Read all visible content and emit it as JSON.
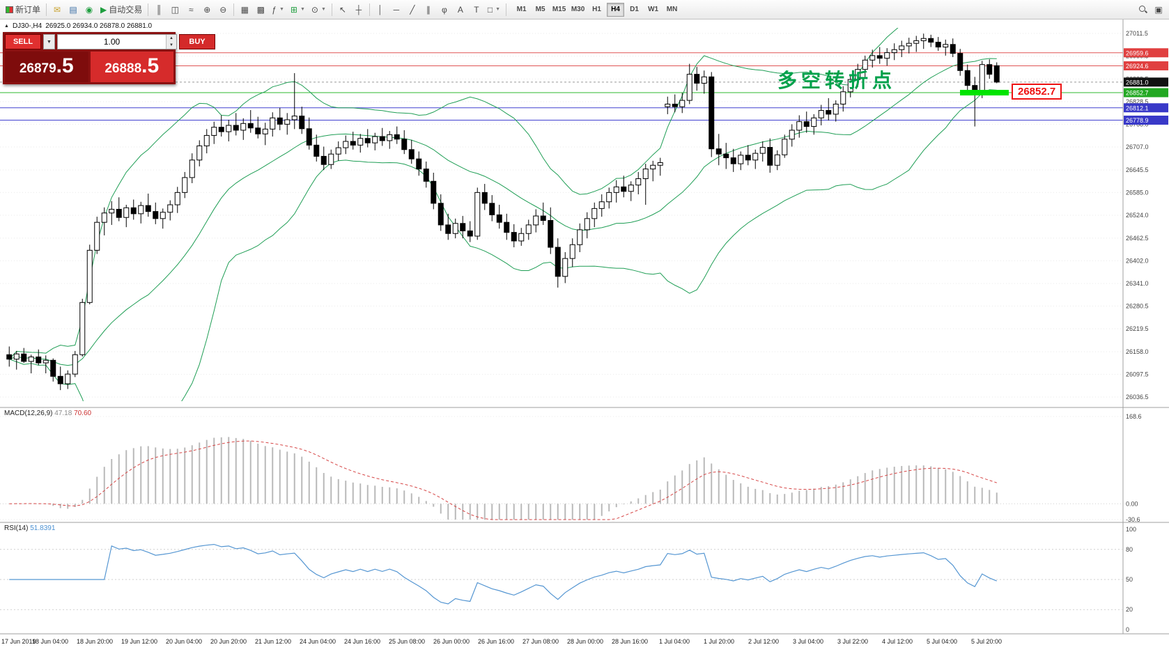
{
  "toolbar": {
    "new_order_label": "新订单",
    "autotrading_label": "自动交易",
    "timeframes": [
      "M1",
      "M5",
      "M15",
      "M30",
      "H1",
      "H4",
      "D1",
      "W1",
      "MN"
    ],
    "active_timeframe": "H4"
  },
  "trade_panel": {
    "sell_label": "SELL",
    "buy_label": "BUY",
    "volume": "1.00",
    "sell_price_int": "26879",
    "sell_price_frac": ".5",
    "buy_price_int": "26888",
    "buy_price_frac": ".5"
  },
  "chart": {
    "header_symbol": "DJ30-,H4",
    "header_ohlc": "26925.0 26934.0 26878.0 26881.0",
    "annotation_text": "多空转折点",
    "callout_text": "26852.7"
  },
  "chart_data": {
    "type": "candlestick",
    "symbol": "DJ30-",
    "timeframe": "H4",
    "last_ohlc": {
      "open": 26925.0,
      "high": 26934.0,
      "low": 26878.0,
      "close": 26881.0
    },
    "price_axis": {
      "max": 27011.5,
      "min": 26036.5,
      "ticks": [
        27011.5,
        26950.5,
        26889.5,
        26828.5,
        26768.0,
        26707.0,
        26645.5,
        26585.0,
        26524.0,
        26462.5,
        26402.0,
        26341.0,
        26280.5,
        26219.5,
        26158.0,
        26097.5,
        26036.5
      ]
    },
    "hlines": [
      {
        "price": 26959.6,
        "label": "26959.6",
        "color": "#e05555",
        "bg": "#e04040",
        "style": "solid"
      },
      {
        "price": 26924.6,
        "label": "26924.6",
        "color": "#e05555",
        "bg": "#e04040",
        "style": "solid"
      },
      {
        "price": 26881.0,
        "label": "26881.0",
        "color": "#999999",
        "bg": "#111111",
        "style": "dash"
      },
      {
        "price": 26852.7,
        "label": "26852.7",
        "color": "#2db82d",
        "bg": "#22a822",
        "style": "solid"
      },
      {
        "price": 26812.1,
        "label": "26812.1",
        "color": "#4141d0",
        "bg": "#3939c8",
        "style": "solid"
      },
      {
        "price": 26778.9,
        "label": "26778.9",
        "color": "#4141d0",
        "bg": "#3939c8",
        "style": "solid"
      }
    ],
    "highlight_segment": {
      "price": 26852.7,
      "color": "#00e400"
    },
    "bollinger": {
      "period": 20,
      "deviation": 2,
      "color": "#1f9e55"
    },
    "macd": {
      "label": "MACD(12,26,9)",
      "value": "47.18",
      "signal_value": "70.60",
      "ylim": [
        -30.6,
        168.6
      ],
      "ticks": [
        "168.6",
        "0.00",
        "-30.6"
      ],
      "hist_color": "#b9b9b9",
      "signal_color": "#d64545"
    },
    "rsi": {
      "label": "RSI(14)",
      "value": "51.8391",
      "ylim": [
        0,
        100
      ],
      "levels": [
        80,
        50,
        20
      ],
      "ticks": [
        "100",
        "80",
        "50",
        "20",
        "0"
      ],
      "color": "#5596d2"
    },
    "time_labels": [
      "17 Jun 2019",
      "18 Jun 04:00",
      "18 Jun 20:00",
      "19 Jun 12:00",
      "20 Jun 04:00",
      "20 Jun 20:00",
      "21 Jun 12:00",
      "24 Jun 04:00",
      "24 Jun 16:00",
      "25 Jun 08:00",
      "26 Jun 00:00",
      "26 Jun 16:00",
      "27 Jun 08:00",
      "28 Jun 00:00",
      "28 Jun 16:00",
      "1 Jul 04:00",
      "1 Jul 20:00",
      "2 Jul 12:00",
      "3 Jul 04:00",
      "3 Jul 22:00",
      "4 Jul 12:00",
      "5 Jul 04:00",
      "5 Jul 20:00"
    ],
    "candles": [
      [
        26150,
        26172,
        26118,
        26138
      ],
      [
        26138,
        26160,
        26110,
        26152
      ],
      [
        26152,
        26168,
        26128,
        26132
      ],
      [
        26132,
        26150,
        26100,
        26144
      ],
      [
        26144,
        26164,
        26122,
        26128
      ],
      [
        26128,
        26148,
        26100,
        26135
      ],
      [
        26135,
        26140,
        26078,
        26092
      ],
      [
        26092,
        26118,
        26055,
        26072
      ],
      [
        26072,
        26108,
        26058,
        26098
      ],
      [
        26098,
        26160,
        26090,
        26150
      ],
      [
        26150,
        26300,
        26145,
        26290
      ],
      [
        26290,
        26445,
        26285,
        26430
      ],
      [
        26430,
        26520,
        26420,
        26505
      ],
      [
        26505,
        26545,
        26470,
        26530
      ],
      [
        26530,
        26562,
        26498,
        26540
      ],
      [
        26540,
        26572,
        26508,
        26518
      ],
      [
        26518,
        26552,
        26492,
        26544
      ],
      [
        26544,
        26566,
        26512,
        26528
      ],
      [
        26528,
        26560,
        26502,
        26550
      ],
      [
        26550,
        26582,
        26520,
        26534
      ],
      [
        26534,
        26558,
        26500,
        26515
      ],
      [
        26515,
        26542,
        26488,
        26532
      ],
      [
        26532,
        26564,
        26510,
        26552
      ],
      [
        26552,
        26600,
        26530,
        26585
      ],
      [
        26585,
        26640,
        26570,
        26625
      ],
      [
        26625,
        26690,
        26610,
        26672
      ],
      [
        26672,
        26725,
        26655,
        26710
      ],
      [
        26710,
        26755,
        26690,
        26738
      ],
      [
        26738,
        26775,
        26715,
        26760
      ],
      [
        26760,
        26792,
        26735,
        26748
      ],
      [
        26748,
        26780,
        26722,
        26765
      ],
      [
        26765,
        26798,
        26738,
        26752
      ],
      [
        26752,
        26784,
        26726,
        26770
      ],
      [
        26770,
        26806,
        26745,
        26758
      ],
      [
        26758,
        26788,
        26730,
        26742
      ],
      [
        26742,
        26772,
        26712,
        26755
      ],
      [
        26755,
        26800,
        26735,
        26785
      ],
      [
        26785,
        26812,
        26752,
        26768
      ],
      [
        26768,
        26798,
        26740,
        26780
      ],
      [
        26780,
        26905,
        26755,
        26790
      ],
      [
        26790,
        26815,
        26742,
        26756
      ],
      [
        26756,
        26786,
        26700,
        26712
      ],
      [
        26712,
        26740,
        26668,
        26682
      ],
      [
        26682,
        26708,
        26645,
        26660
      ],
      [
        26660,
        26700,
        26648,
        26688
      ],
      [
        26688,
        26722,
        26670,
        26705
      ],
      [
        26705,
        26738,
        26688,
        26722
      ],
      [
        26722,
        26748,
        26700,
        26712
      ],
      [
        26712,
        26742,
        26692,
        26730
      ],
      [
        26730,
        26755,
        26706,
        26718
      ],
      [
        26718,
        26745,
        26698,
        26735
      ],
      [
        26735,
        26758,
        26710,
        26724
      ],
      [
        26724,
        26750,
        26702,
        26740
      ],
      [
        26740,
        26762,
        26715,
        26728
      ],
      [
        26728,
        26752,
        26688,
        26700
      ],
      [
        26700,
        26726,
        26662,
        26675
      ],
      [
        26675,
        26695,
        26630,
        26648
      ],
      [
        26648,
        26668,
        26598,
        26615
      ],
      [
        26615,
        26638,
        26540,
        26556
      ],
      [
        26556,
        26580,
        26482,
        26498
      ],
      [
        26498,
        26528,
        26458,
        26475
      ],
      [
        26475,
        26515,
        26462,
        26502
      ],
      [
        26502,
        26522,
        26462,
        26482
      ],
      [
        26482,
        26508,
        26452,
        26468
      ],
      [
        26468,
        26598,
        26458,
        26585
      ],
      [
        26585,
        26608,
        26538,
        26556
      ],
      [
        26556,
        26578,
        26508,
        26525
      ],
      [
        26525,
        26552,
        26488,
        26505
      ],
      [
        26505,
        26528,
        26458,
        26478
      ],
      [
        26478,
        26500,
        26438,
        26455
      ],
      [
        26455,
        26490,
        26442,
        26475
      ],
      [
        26475,
        26512,
        26458,
        26498
      ],
      [
        26498,
        26540,
        26478,
        26522
      ],
      [
        26522,
        26558,
        26498,
        26510
      ],
      [
        26510,
        26545,
        26420,
        26438
      ],
      [
        26438,
        26462,
        26330,
        26360
      ],
      [
        26360,
        26425,
        26342,
        26408
      ],
      [
        26408,
        26462,
        26385,
        26445
      ],
      [
        26445,
        26502,
        26425,
        26485
      ],
      [
        26485,
        26532,
        26462,
        26515
      ],
      [
        26515,
        26558,
        26492,
        26542
      ],
      [
        26542,
        26580,
        26520,
        26560
      ],
      [
        26560,
        26598,
        26542,
        26585
      ],
      [
        26585,
        26618,
        26558,
        26600
      ],
      [
        26600,
        26630,
        26572,
        26588
      ],
      [
        26588,
        26615,
        26562,
        26605
      ],
      [
        26605,
        26640,
        26580,
        26622
      ],
      [
        26622,
        26662,
        26552,
        26648
      ],
      [
        26648,
        26670,
        26615,
        26658
      ],
      [
        26658,
        26678,
        26630,
        26665
      ],
      [
        26815,
        26842,
        26795,
        26822
      ],
      [
        26822,
        26848,
        26800,
        26815
      ],
      [
        26815,
        26852,
        26798,
        26832
      ],
      [
        26832,
        26930,
        26822,
        26902
      ],
      [
        26902,
        26922,
        26858,
        26878
      ],
      [
        26878,
        26912,
        26850,
        26895
      ],
      [
        26895,
        26908,
        26680,
        26702
      ],
      [
        26702,
        26742,
        26658,
        26688
      ],
      [
        26688,
        26718,
        26648,
        26678
      ],
      [
        26678,
        26702,
        26640,
        26662
      ],
      [
        26662,
        26695,
        26645,
        26685
      ],
      [
        26685,
        26712,
        26658,
        26672
      ],
      [
        26672,
        26700,
        26648,
        26690
      ],
      [
        26690,
        26722,
        26668,
        26706
      ],
      [
        26706,
        26730,
        26638,
        26658
      ],
      [
        26658,
        26698,
        26645,
        26686
      ],
      [
        26686,
        26740,
        26678,
        26728
      ],
      [
        26728,
        26768,
        26708,
        26752
      ],
      [
        26752,
        26792,
        26732,
        26775
      ],
      [
        26775,
        26802,
        26745,
        26762
      ],
      [
        26762,
        26795,
        26740,
        26785
      ],
      [
        26785,
        26820,
        26765,
        26805
      ],
      [
        26805,
        26838,
        26778,
        26795
      ],
      [
        26795,
        26832,
        26775,
        26822
      ],
      [
        26822,
        26870,
        26802,
        26855
      ],
      [
        26855,
        26900,
        26840,
        26888
      ],
      [
        26888,
        26930,
        26868,
        26915
      ],
      [
        26915,
        26952,
        26895,
        26940
      ],
      [
        26940,
        26968,
        26920,
        26952
      ],
      [
        26952,
        26975,
        26930,
        26945
      ],
      [
        26945,
        26972,
        26925,
        26960
      ],
      [
        26960,
        26985,
        26940,
        26968
      ],
      [
        26968,
        26992,
        26948,
        26978
      ],
      [
        26978,
        27000,
        26958,
        26985
      ],
      [
        26985,
        27005,
        26962,
        26992
      ],
      [
        26992,
        27011,
        26970,
        26998
      ],
      [
        26998,
        27008,
        26975,
        26988
      ],
      [
        26988,
        27002,
        26965,
        26975
      ],
      [
        26975,
        26995,
        26952,
        26982
      ],
      [
        26982,
        26998,
        26948,
        26958
      ],
      [
        26958,
        26970,
        26898,
        26912
      ],
      [
        26912,
        26928,
        26855,
        26872
      ],
      [
        26872,
        26895,
        26762,
        26848
      ],
      [
        26848,
        26938,
        26838,
        26928
      ],
      [
        26928,
        26942,
        26890,
        26902
      ],
      [
        26925,
        26934,
        26878,
        26881
      ]
    ]
  }
}
